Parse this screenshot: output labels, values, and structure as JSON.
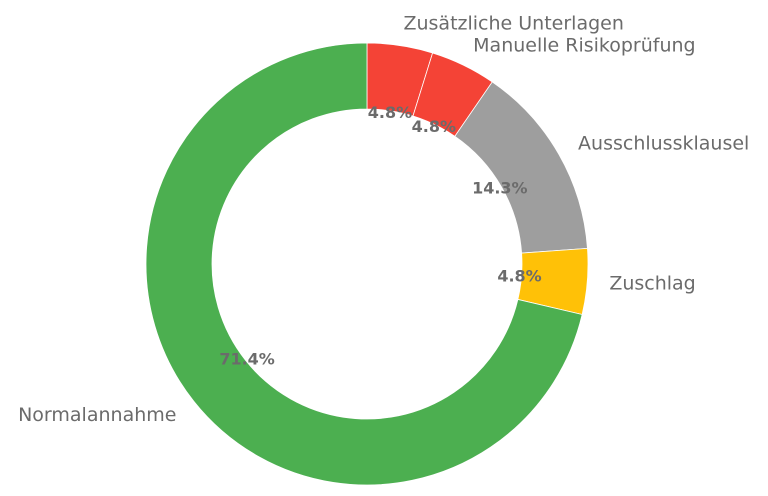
{
  "chart_data": {
    "type": "pie",
    "style": "donut",
    "title": "",
    "start_angle_deg": 90,
    "direction": "clockwise",
    "slices": [
      {
        "label": "Zusätzliche Unterlagen",
        "value": 4.8,
        "pct_label": "4.8%",
        "color": "#f44336"
      },
      {
        "label": "Manuelle Risikoprüfung",
        "value": 4.8,
        "pct_label": "4.8%",
        "color": "#f44336"
      },
      {
        "label": "Ausschlussklausel",
        "value": 14.3,
        "pct_label": "14.3%",
        "color": "#9e9e9e"
      },
      {
        "label": "Zuschlag",
        "value": 4.8,
        "pct_label": "4.8%",
        "color": "#ffc107"
      },
      {
        "label": "Normalannahme",
        "value": 71.4,
        "pct_label": "71.4%",
        "color": "#4caf50"
      }
    ]
  }
}
